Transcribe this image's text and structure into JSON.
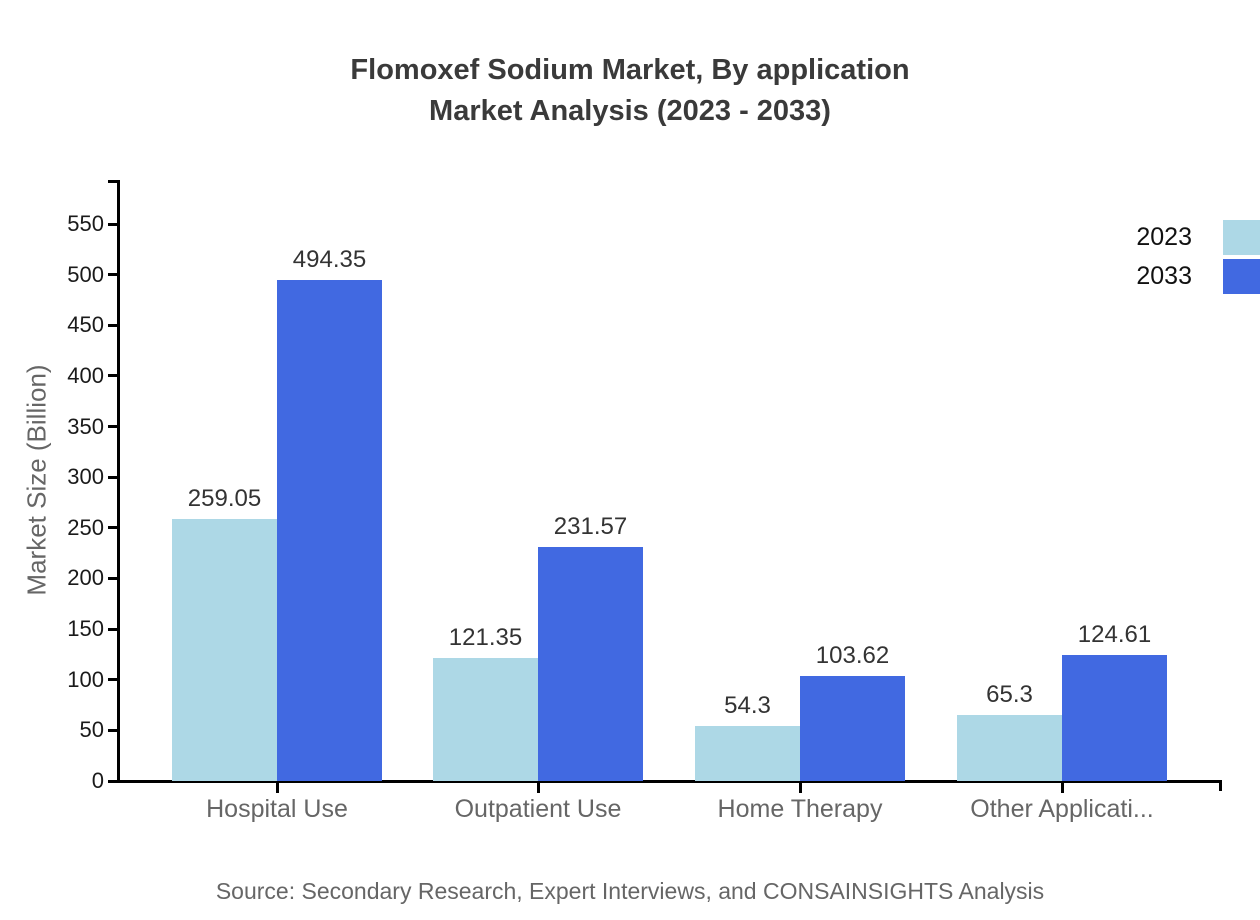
{
  "title": {
    "line1": "Flomoxef Sodium Market, By application",
    "line2": "Market Analysis (2023 - 2033)"
  },
  "source": "Source: Secondary Research, Expert Interviews, and CONSAINSIGHTS Analysis",
  "colors": {
    "series_2023": "#ADD8E6",
    "series_2033": "#4169E1",
    "axis": "#000000",
    "title_text": "#3A3A3A",
    "muted_text": "#666666"
  },
  "legend": {
    "items": [
      {
        "label": "2023",
        "color": "#ADD8E6"
      },
      {
        "label": "2033",
        "color": "#4169E1"
      }
    ],
    "position": "top-right"
  },
  "chart_data": {
    "type": "bar",
    "title": "Flomoxef Sodium Market, By application Market Analysis (2023 - 2033)",
    "categories": [
      "Hospital Use",
      "Outpatient Use",
      "Home Therapy",
      "Other Applicati..."
    ],
    "series": [
      {
        "name": "2023",
        "color": "#ADD8E6",
        "values": [
          259.05,
          121.35,
          54.3,
          65.3
        ]
      },
      {
        "name": "2033",
        "color": "#4169E1",
        "values": [
          494.35,
          231.57,
          103.62,
          124.61
        ]
      }
    ],
    "xlabel": "",
    "ylabel": "Market Size (Billion)",
    "ylim": [
      0,
      593.5
    ],
    "yticks": [
      0,
      50,
      100,
      150,
      200,
      250,
      300,
      350,
      400,
      450,
      500,
      550
    ],
    "grid": false,
    "legend_position": "top-right",
    "value_labels": true
  }
}
